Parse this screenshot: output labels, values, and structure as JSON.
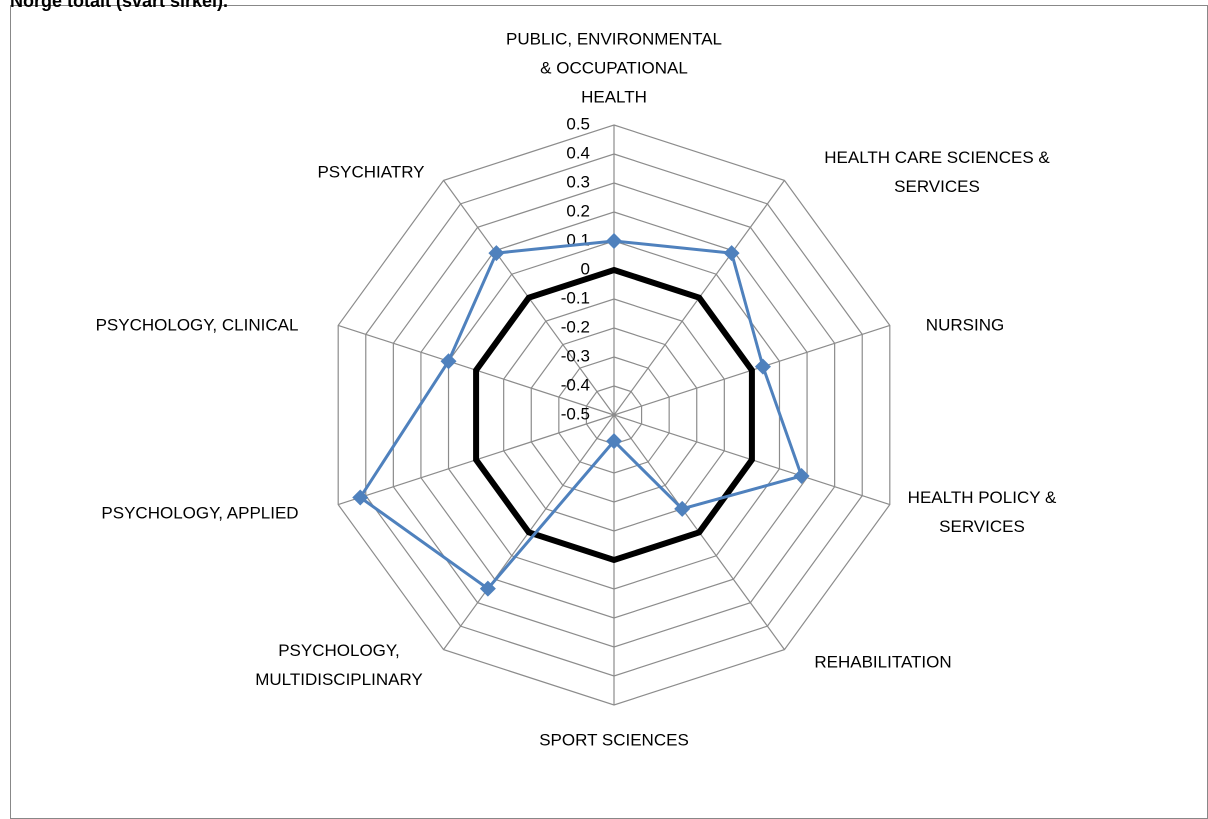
{
  "chart_data": {
    "type": "radar",
    "title": "Norge totalt (svart sirkel).",
    "categories": [
      "PUBLIC, ENVIRONMENTAL\n& OCCUPATIONAL\nHEALTH",
      "HEALTH CARE SCIENCES &\nSERVICES",
      "NURSING",
      "HEALTH POLICY &\nSERVICES",
      "REHABILITATION",
      "SPORT SCIENCES",
      "PSYCHOLOGY,\nMULTIDISCIPLINARY",
      "PSYCHOLOGY, APPLIED",
      "PSYCHOLOGY, CLINICAL",
      "PSYCHIATRY"
    ],
    "series": [
      {
        "color": "#4f81bd",
        "marker": "diamond",
        "values": [
          0.1,
          0.19,
          0.04,
          0.18,
          -0.1,
          -0.41,
          0.24,
          0.42,
          0.1,
          0.19
        ]
      },
      {
        "color": "#000000",
        "marker": "none",
        "values": [
          0,
          0,
          0,
          0,
          0,
          0,
          0,
          0,
          0,
          0
        ]
      }
    ],
    "ylim": [
      -0.5,
      0.5
    ],
    "yticks": [
      -0.5,
      -0.4,
      -0.3,
      -0.2,
      -0.1,
      0,
      0.1,
      0.2,
      0.3,
      0.4,
      0.5
    ],
    "grid": true
  }
}
